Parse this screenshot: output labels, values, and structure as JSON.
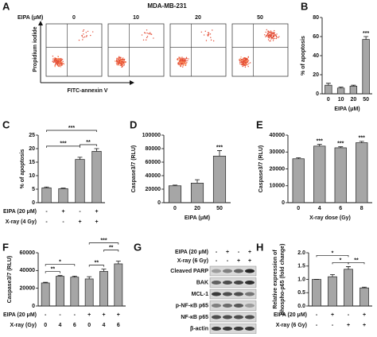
{
  "chart_data": [
    {
      "type": "bar",
      "panel": "B",
      "ylabel": "% of apoptosis",
      "xlabel": "EIPA (μM)",
      "categories": [
        "0",
        "10",
        "20",
        "50"
      ],
      "values": [
        9,
        6,
        8,
        57
      ],
      "errors": [
        2,
        1,
        1,
        3
      ],
      "ylim": [
        0,
        80
      ],
      "yticks": [
        0,
        20,
        40,
        60,
        80
      ],
      "annotations": [
        "***"
      ],
      "color": "#a6a6a6"
    },
    {
      "type": "bar",
      "panel": "C",
      "ylabel": "% of apoptosis",
      "values": [
        5.5,
        5.2,
        16,
        19
      ],
      "errors": [
        0.3,
        0.2,
        0.8,
        1.0
      ],
      "ylim": [
        0,
        25
      ],
      "yticks": [
        0,
        5,
        10,
        15,
        20,
        25
      ],
      "annotations": [
        "***",
        "***",
        "**"
      ],
      "condition_rows": [
        {
          "label": "EIPA (20 μM)",
          "marks": [
            "-",
            "+",
            "-",
            "+"
          ]
        },
        {
          "label": "X-ray (4 Gy)",
          "marks": [
            "-",
            "-",
            "+",
            "+"
          ]
        }
      ],
      "color": "#a6a6a6"
    },
    {
      "type": "bar",
      "panel": "D",
      "ylabel": "Caspase3/7 (RLU)",
      "xlabel": "EIPA (μM)",
      "categories": [
        "0",
        "20",
        "50"
      ],
      "values": [
        25000,
        29000,
        69000
      ],
      "errors": [
        1000,
        5000,
        8000
      ],
      "ylim": [
        0,
        100000
      ],
      "yticks": [
        0,
        20000,
        40000,
        60000,
        80000,
        100000
      ],
      "annotations": [
        "***"
      ],
      "color": "#a6a6a6"
    },
    {
      "type": "bar",
      "panel": "E",
      "ylabel": "Caspase3/7 (RLU)",
      "xlabel": "X-ray dose (Gy)",
      "categories": [
        "0",
        "4",
        "6",
        "8"
      ],
      "values": [
        26000,
        33500,
        32500,
        35500
      ],
      "errors": [
        600,
        1000,
        600,
        800
      ],
      "ylim": [
        0,
        40000
      ],
      "yticks": [
        0,
        10000,
        20000,
        30000,
        40000
      ],
      "annotations": [
        "***",
        "***",
        "***"
      ],
      "color": "#a6a6a6"
    },
    {
      "type": "bar",
      "panel": "F",
      "ylabel": "Caspase3/7 (RLU)",
      "values": [
        26000,
        33500,
        32500,
        30500,
        39000,
        47500
      ],
      "errors": [
        700,
        800,
        1200,
        2500,
        2500,
        3000
      ],
      "ylim": [
        0,
        60000
      ],
      "yticks": [
        0,
        20000,
        40000,
        60000
      ],
      "annotations": [
        "*",
        "**",
        "***",
        "**",
        "**"
      ],
      "condition_rows": [
        {
          "label": "EIPA (20 μM)",
          "marks": [
            "-",
            "-",
            "-",
            "+",
            "+",
            "+"
          ]
        },
        {
          "label": "X-ray (Gy)",
          "marks": [
            "0",
            "4",
            "6",
            "0",
            "4",
            "6"
          ]
        }
      ],
      "color": "#a6a6a6"
    },
    {
      "type": "bar",
      "panel": "H",
      "ylabel": [
        "Relative expression of",
        "phospho-p65 (fold change)"
      ],
      "values": [
        1.0,
        1.1,
        1.38,
        0.68
      ],
      "errors": [
        0,
        0.08,
        0.1,
        0.03
      ],
      "ylim": [
        0,
        2
      ],
      "yticks": [
        {
          "value": 0,
          "label": "0.0"
        },
        {
          "value": 0.5,
          "label": "0.5"
        },
        {
          "value": 1,
          "label": "1.0"
        },
        {
          "value": 1.5,
          "label": "1.5"
        },
        {
          "value": 2,
          "label": "2.0"
        }
      ],
      "annotations": [
        "*",
        "*",
        "**"
      ],
      "condition_rows": [
        {
          "label": "EIPA (20 μM)",
          "marks": [
            "-",
            "+",
            "-",
            "+"
          ]
        },
        {
          "label": "X-ray (6 Gy)",
          "marks": [
            "-",
            "-",
            "+",
            "+"
          ]
        }
      ],
      "color": "#a6a6a6"
    }
  ],
  "flow": {
    "panel": "A",
    "title": "MDA-MB-231",
    "group_label": "EIPA (μM)",
    "columns": [
      "0",
      "10",
      "20",
      "50"
    ],
    "ylabel": "Propidium iodide",
    "xlabel": "FITC-annexin V"
  },
  "blot": {
    "panel": "G",
    "condition_rows": [
      {
        "label": "EIPA (20 μM)",
        "marks": [
          "-",
          "+",
          "-",
          "+"
        ]
      },
      {
        "label": "X-ray (6 Gy)",
        "marks": [
          "-",
          "-",
          "+",
          "+"
        ]
      }
    ],
    "bands": [
      "Cleaved PARP",
      "BAK",
      "MCL-1",
      "p-NF-κB p65",
      "NF-κB p65",
      "β-actin"
    ]
  }
}
